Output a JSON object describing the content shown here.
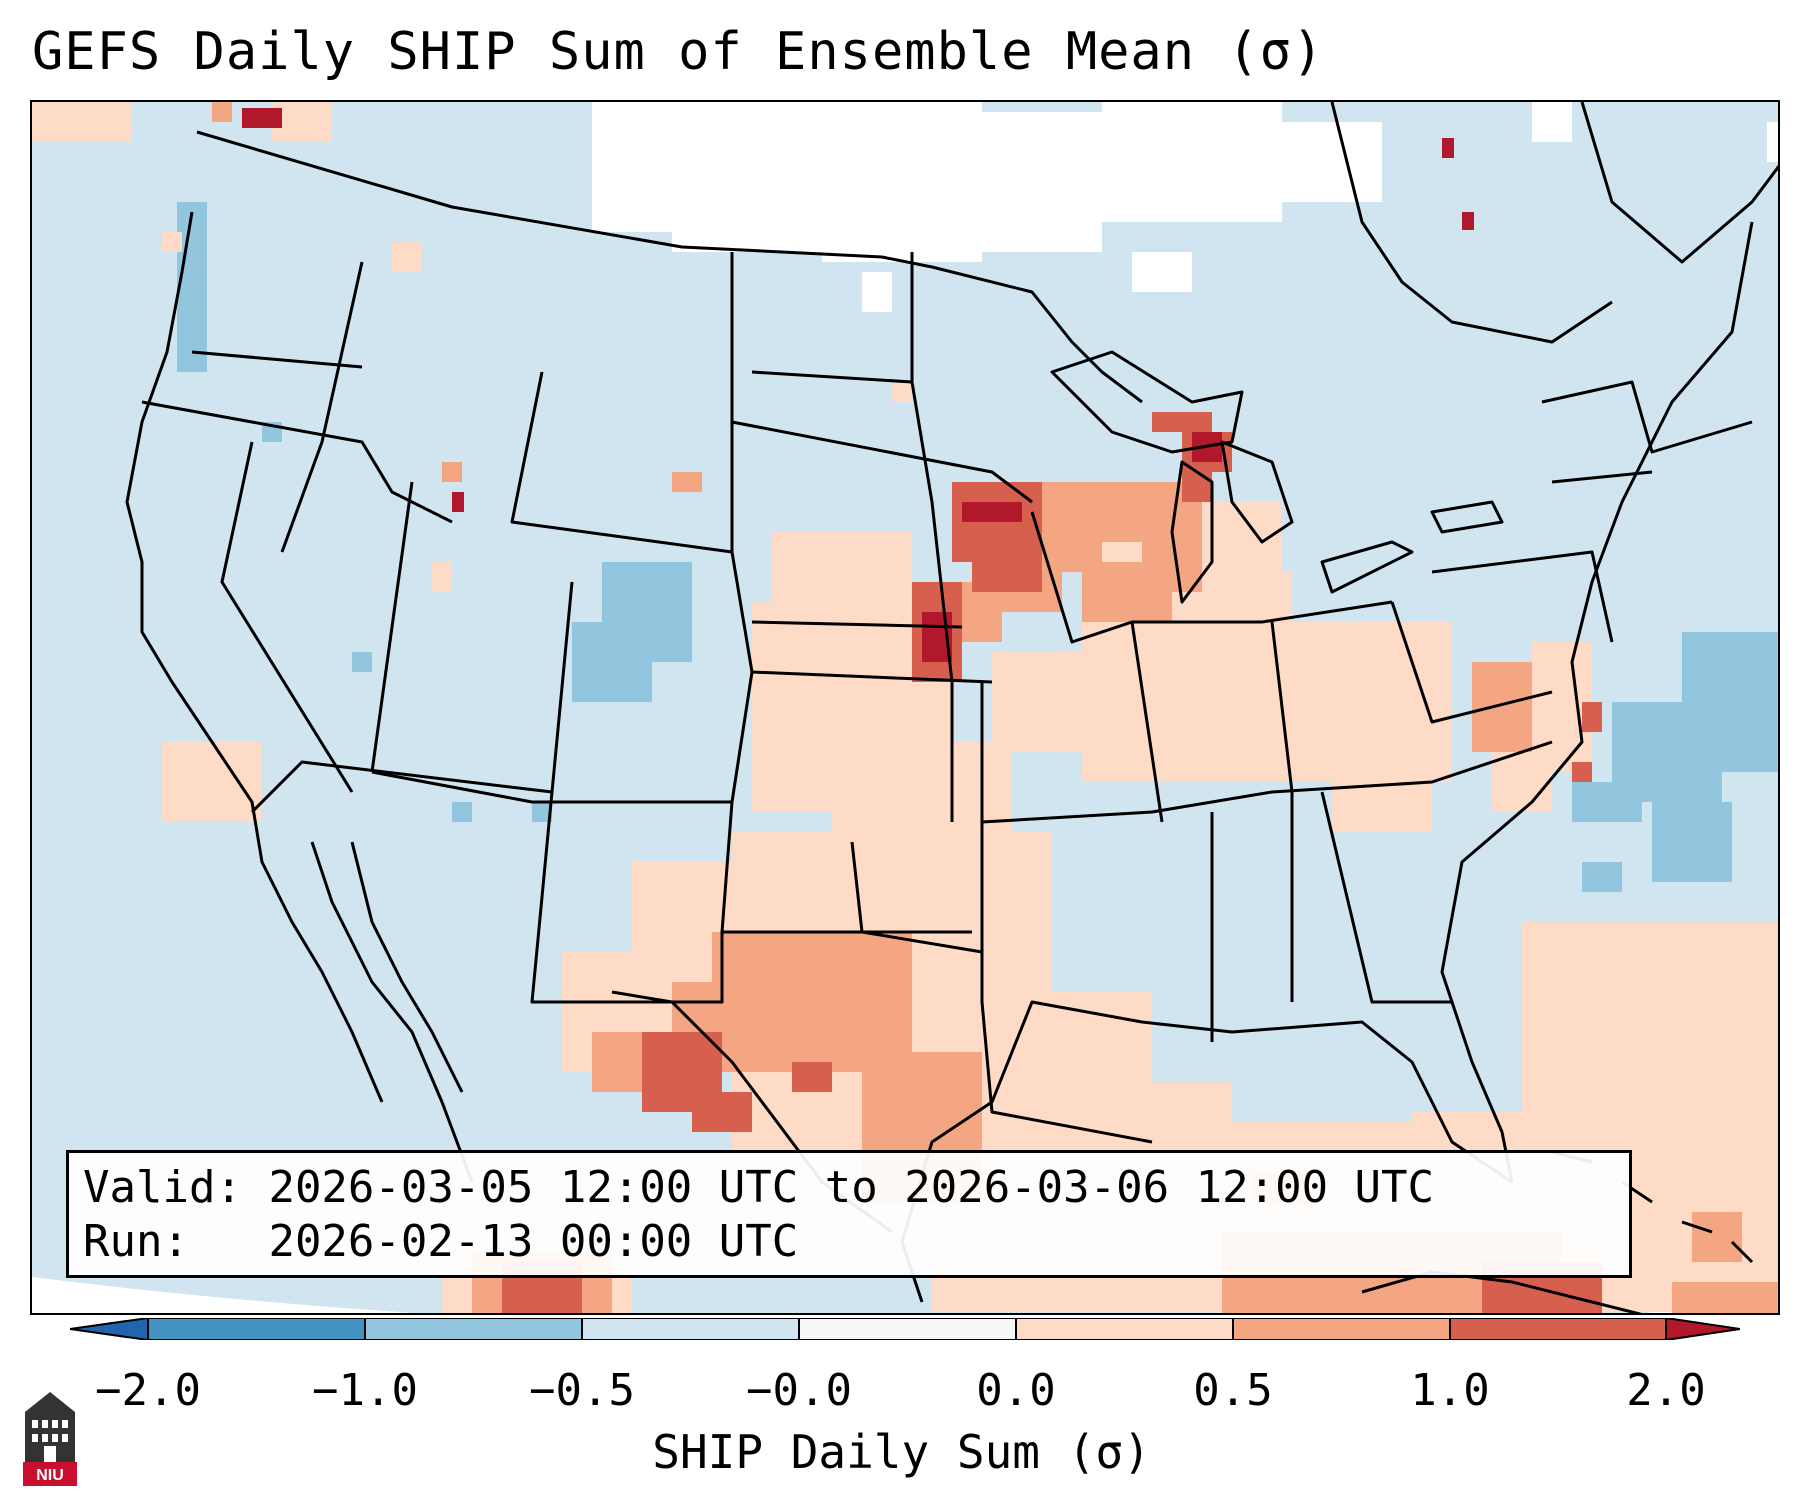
{
  "title": "GEFS Daily SHIP Sum of Ensemble Mean (σ)",
  "info": {
    "valid_label": "Valid:",
    "valid_value": "2026-03-05 12:00 UTC to 2026-03-06 12:00 UTC",
    "run_label": "Run:",
    "run_value": "2026-02-13 00:00 UTC"
  },
  "colorbar": {
    "label": "SHIP Daily Sum (σ)",
    "ticks": [
      "−2.0",
      "−1.0",
      "−0.5",
      "−0.0",
      "0.0",
      "0.5",
      "1.0",
      "2.0"
    ],
    "colors": {
      "under": "#2166ac",
      "b_neg2_neg1": "#4393c3",
      "b_neg1_neg05": "#92c5de",
      "b_neg05_0": "#d1e5f0",
      "b_zero": "#f7f7f7",
      "b_0_05": "#fddbc7",
      "b_05_1": "#f4a582",
      "b_1_2": "#d6604d",
      "over": "#b2182b"
    }
  },
  "map": {
    "background_color": "#d1e5f0",
    "features": [
      "state-borders",
      "coastlines",
      "great-lakes",
      "mexico",
      "canada",
      "bahamas"
    ]
  },
  "logo": {
    "text": "NIU",
    "icon": "niu-building-icon"
  }
}
